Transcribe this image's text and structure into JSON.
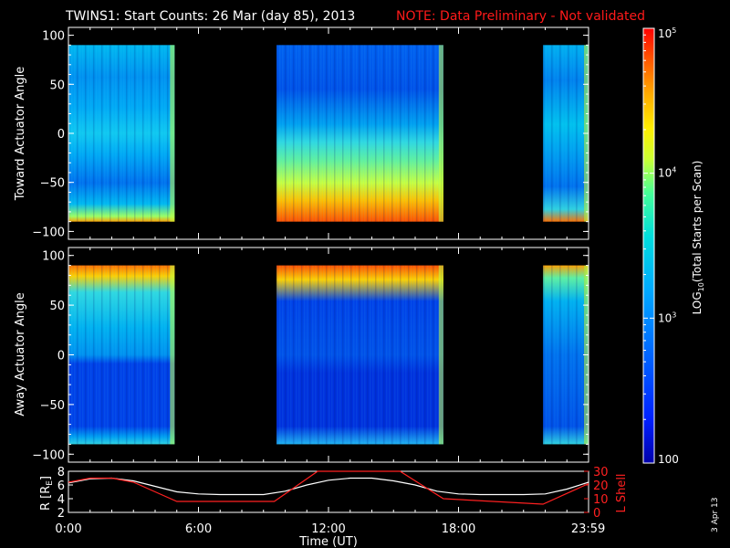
{
  "header": {
    "title": "TWINS1: Start Counts: 26 Mar (day  85), 2013",
    "note": "NOTE: Data Preliminary - Not validated"
  },
  "panels": {
    "toward": {
      "ylabel": "Toward Actuator Angle"
    },
    "away": {
      "ylabel": "Away Actuator Angle"
    },
    "orbit": {
      "ylabel_left": "R [R",
      "ylabel_left_sub": "E",
      "ylabel_left_end": "]",
      "ylabel_right": "L Shell"
    }
  },
  "xaxis": {
    "label": "Time (UT)",
    "ticks": [
      "0:00",
      "6:00",
      "12:00",
      "18:00",
      "23:59"
    ],
    "tick_hours": [
      0,
      6,
      12,
      18,
      23.983
    ]
  },
  "colorbar": {
    "label_pre": "LOG",
    "label_sub": "10",
    "label_post": "(Total Starts per Scan)",
    "ticks": [
      {
        "base": "10",
        "exp": "5",
        "value": 100000
      },
      {
        "base": "10",
        "exp": "4",
        "value": 10000
      },
      {
        "base": "10",
        "exp": "3",
        "value": 1000
      },
      {
        "base": "100",
        "exp": "",
        "value": 100
      }
    ],
    "colors": [
      "#0000aa",
      "#0020ff",
      "#0066ff",
      "#00aaff",
      "#00dddd",
      "#44ff99",
      "#ccff33",
      "#ffee00",
      "#ffaa00",
      "#ff5500",
      "#ff0000"
    ]
  },
  "date_stamp": "3 Apr 13",
  "chart_data": [
    {
      "type": "heatmap",
      "title": "",
      "ylabel": "Toward Actuator Angle",
      "xlabel": "",
      "ylim": [
        -108,
        108
      ],
      "yticks": [
        "100",
        "50",
        "0",
        "−50",
        "−100"
      ],
      "ytick_values": [
        100,
        50,
        0,
        -50,
        -100
      ],
      "angle_range": [
        -90,
        90
      ],
      "z_scale": "log",
      "z_range": [
        100,
        100000
      ],
      "data_intervals_ut_hours": [
        [
          0,
          4.9
        ],
        [
          9.6,
          17.3
        ],
        [
          21.9,
          24
        ]
      ],
      "description_levels": "mostly 10^3 to 10^3.5, high values (10^4.5-10^5) near -80 to -90 deg during 9.6-12.0 UT"
    },
    {
      "type": "heatmap",
      "title": "",
      "ylabel": "Away Actuator Angle",
      "xlabel": "",
      "ylim": [
        -108,
        108
      ],
      "yticks": [
        "100",
        "50",
        "0",
        "−50",
        "−100"
      ],
      "ytick_values": [
        100,
        50,
        0,
        -50,
        -100
      ],
      "angle_range": [
        -90,
        90
      ],
      "z_scale": "log",
      "z_range": [
        100,
        100000
      ],
      "data_intervals_ut_hours": [
        [
          0,
          4.9
        ],
        [
          9.6,
          17.3
        ],
        [
          21.9,
          24
        ]
      ]
    },
    {
      "type": "line",
      "title": "",
      "xlabel": "Time (UT)",
      "ylabel": "R [RE]",
      "ylim": [
        2,
        8
      ],
      "yticks": [
        "8",
        "6",
        "4",
        "2"
      ],
      "ytick_values": [
        8,
        6,
        4,
        2
      ],
      "y2label": "L Shell",
      "y2lim": [
        0,
        30
      ],
      "y2ticks": [
        "30",
        "20",
        "10",
        "0"
      ],
      "y2tick_values": [
        30,
        20,
        10,
        0
      ],
      "series": [
        {
          "name": "R",
          "color": "#ffffff",
          "x": [
            0,
            1,
            2,
            3,
            4,
            5,
            6,
            7,
            8,
            9,
            10,
            11,
            12,
            13,
            14,
            15,
            16,
            17,
            18,
            19,
            20,
            21,
            22,
            23,
            24
          ],
          "y": [
            6.3,
            6.9,
            7.0,
            6.6,
            5.8,
            5.0,
            4.7,
            4.6,
            4.6,
            4.6,
            5.1,
            6.0,
            6.7,
            7.0,
            7.0,
            6.6,
            6.0,
            5.1,
            4.7,
            4.6,
            4.6,
            4.6,
            4.7,
            5.4,
            6.4
          ]
        },
        {
          "name": "L Shell",
          "color": "#ff2020",
          "axis": "right",
          "x": [
            0,
            1,
            2,
            3,
            4,
            5,
            9.5,
            11.5,
            15.3,
            17.3,
            21.9,
            24
          ],
          "y": [
            22,
            25,
            25,
            22,
            15,
            8,
            8,
            30,
            30,
            10,
            6,
            21
          ]
        }
      ]
    }
  ]
}
